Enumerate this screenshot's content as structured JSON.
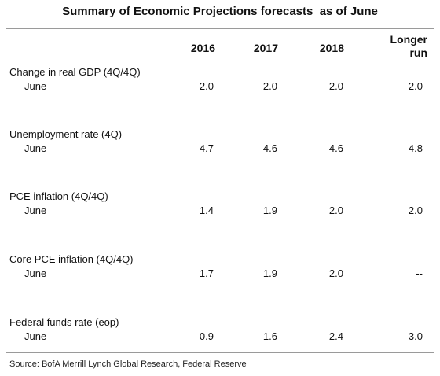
{
  "chart_data": {
    "type": "table",
    "title": "Summary of Economic Projections forecasts  as of June",
    "columns": [
      "2016",
      "2017",
      "2018",
      "Longer run"
    ],
    "column_display": [
      [
        "2016"
      ],
      [
        "2017"
      ],
      [
        "2018"
      ],
      [
        "Longer",
        "run"
      ]
    ],
    "rows": [
      {
        "label": "Change in real GDP (4Q/4Q)",
        "sub": "June",
        "values": [
          "2.0",
          "2.0",
          "2.0",
          "2.0"
        ]
      },
      {
        "label": "Unemployment rate (4Q)",
        "sub": "June",
        "values": [
          "4.7",
          "4.6",
          "4.6",
          "4.8"
        ]
      },
      {
        "label": "PCE inflation (4Q/4Q)",
        "sub": "June",
        "values": [
          "1.4",
          "1.9",
          "2.0",
          "2.0"
        ]
      },
      {
        "label": "Core PCE inflation (4Q/4Q)",
        "sub": "June",
        "values": [
          "1.7",
          "1.9",
          "2.0",
          "--"
        ]
      },
      {
        "label": "Federal funds rate (eop)",
        "sub": "June",
        "values": [
          "0.9",
          "1.6",
          "2.4",
          "3.0"
        ]
      }
    ],
    "source": "Source: BofA Merrill Lynch Global Research, Federal Reserve"
  }
}
